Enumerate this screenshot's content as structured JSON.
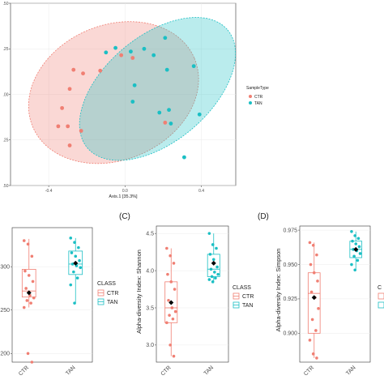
{
  "chart_data": [
    {
      "type": "scatter",
      "panel_label": "",
      "xlabel": "Axis.1  [35.3%]",
      "ylabel": "",
      "xlim": [
        -0.6,
        0.58
      ],
      "ylim": [
        -0.5,
        0.5
      ],
      "xticks": [
        "-0.4",
        "0.0",
        "0.4"
      ],
      "xtick_values": [
        -0.4,
        0.0,
        0.4
      ],
      "yticks": [
        ".50",
        ".25",
        ".00",
        ".25",
        ".50"
      ],
      "ytick_values": [
        0.5,
        0.25,
        0.0,
        -0.25,
        -0.5
      ],
      "grid": true,
      "legend": {
        "title": "SampleType",
        "position": "right",
        "entries": [
          "CTR",
          "TAN"
        ]
      },
      "series": [
        {
          "name": "CTR",
          "color": "#f07f73",
          "points": [
            [
              -0.27,
              0.135
            ],
            [
              -0.22,
              0.115
            ],
            [
              -0.13,
              0.13
            ],
            [
              -0.02,
              0.215
            ],
            [
              -0.29,
              0.03
            ],
            [
              -0.33,
              -0.075
            ],
            [
              -0.35,
              -0.175
            ],
            [
              -0.3,
              -0.175
            ],
            [
              -0.23,
              -0.2
            ],
            [
              -0.29,
              -0.28
            ],
            [
              0.04,
              0.2
            ],
            [
              0.21,
              -0.155
            ]
          ]
        },
        {
          "name": "TAN",
          "color": "#1bbfc4",
          "points": [
            [
              -0.1,
              0.23
            ],
            [
              -0.05,
              0.255
            ],
            [
              0.03,
              0.235
            ],
            [
              0.1,
              0.25
            ],
            [
              0.15,
              0.215
            ],
            [
              0.21,
              0.31
            ],
            [
              0.22,
              0.135
            ],
            [
              0.36,
              0.155
            ],
            [
              0.05,
              0.05
            ],
            [
              0.04,
              -0.04
            ],
            [
              0.23,
              -0.085
            ],
            [
              0.18,
              -0.1
            ],
            [
              0.24,
              -0.16
            ],
            [
              0.39,
              -0.11
            ],
            [
              0.31,
              -0.345
            ]
          ]
        }
      ],
      "ellipses": [
        {
          "group": "CTR",
          "cx": -0.06,
          "cy": 0.01,
          "rx": 0.46,
          "ry": 0.37,
          "angle_deg": 23
        },
        {
          "group": "TAN",
          "cx": 0.17,
          "cy": 0.03,
          "rx": 0.48,
          "ry": 0.29,
          "angle_deg": 40
        }
      ]
    },
    {
      "type": "box",
      "panel_label": "",
      "xlabel": "",
      "ylabel": "",
      "categories": [
        "CTR",
        "TAN"
      ],
      "ylim": [
        190,
        345
      ],
      "yticks": [
        "200",
        "250",
        "300"
      ],
      "ytick_values": [
        200,
        250,
        300
      ],
      "legend": {
        "title": "CLASS",
        "entries": [
          "CTR",
          "TAN"
        ]
      },
      "boxes": [
        {
          "name": "CTR",
          "color": "#f07f73",
          "q1": 265,
          "median": 272,
          "q3": 297,
          "whisker_low": 253,
          "whisker_high": 332,
          "mean": 270,
          "points": [
            330,
            326,
            312,
            295,
            290,
            283,
            275,
            267,
            264,
            261,
            258,
            253,
            200,
            190
          ]
        },
        {
          "name": "TAN",
          "color": "#1bbfc4",
          "q1": 291,
          "median": 303,
          "q3": 318,
          "whisker_low": 258,
          "whisker_high": 333,
          "mean": 304,
          "points": [
            333,
            328,
            322,
            316,
            312,
            307,
            303,
            301,
            299,
            294,
            287,
            279,
            258
          ]
        }
      ]
    },
    {
      "type": "box",
      "panel_label": "(C)",
      "xlabel": "",
      "ylabel": "Alpha-diversity Index: Shannon",
      "categories": [
        "CTR",
        "TAN"
      ],
      "ylim": [
        2.77,
        4.6
      ],
      "yticks": [
        "3.0",
        "3.5",
        "4.0",
        "4.5"
      ],
      "ytick_values": [
        3.0,
        3.5,
        4.0,
        4.5
      ],
      "legend": {
        "title": "CLASS",
        "entries": [
          "CTR",
          "TAN"
        ]
      },
      "boxes": [
        {
          "name": "CTR",
          "color": "#f07f73",
          "q1": 3.3,
          "median": 3.5,
          "q3": 3.85,
          "whisker_low": 2.85,
          "whisker_high": 4.3,
          "mean": 3.57,
          "points": [
            4.3,
            4.2,
            4.1,
            3.95,
            3.85,
            3.75,
            3.6,
            3.5,
            3.45,
            3.4,
            3.35,
            3.3,
            3.0,
            2.85
          ]
        },
        {
          "name": "TAN",
          "color": "#1bbfc4",
          "q1": 3.92,
          "median": 4.02,
          "q3": 4.22,
          "whisker_low": 3.85,
          "whisker_high": 4.5,
          "mean": 4.1,
          "points": [
            4.5,
            4.35,
            4.3,
            4.22,
            4.15,
            4.05,
            4.02,
            3.98,
            3.95,
            3.92,
            3.9,
            3.88,
            3.85
          ]
        }
      ]
    },
    {
      "type": "box",
      "panel_label": "(D)",
      "xlabel": "",
      "ylabel": "Alpha-diversity Index: Simpson",
      "categories": [
        "CTR",
        "TAN"
      ],
      "ylim": [
        0.879,
        0.978
      ],
      "yticks": [
        "0.900",
        "0.925",
        "0.950",
        "0.975"
      ],
      "ytick_values": [
        0.9,
        0.925,
        0.95,
        0.975
      ],
      "legend": {
        "title": "C",
        "entries": [
          "",
          ""
        ]
      },
      "boxes": [
        {
          "name": "CTR",
          "color": "#f07f73",
          "q1": 0.9,
          "median": 0.929,
          "q3": 0.944,
          "whisker_low": 0.882,
          "whisker_high": 0.966,
          "mean": 0.926,
          "points": [
            0.966,
            0.964,
            0.957,
            0.95,
            0.944,
            0.938,
            0.93,
            0.926,
            0.918,
            0.91,
            0.902,
            0.895,
            0.885,
            0.882
          ]
        },
        {
          "name": "TAN",
          "color": "#1bbfc4",
          "q1": 0.955,
          "median": 0.961,
          "q3": 0.967,
          "whisker_low": 0.946,
          "whisker_high": 0.974,
          "mean": 0.961,
          "points": [
            0.974,
            0.971,
            0.969,
            0.967,
            0.965,
            0.963,
            0.961,
            0.96,
            0.958,
            0.956,
            0.953,
            0.95,
            0.946
          ]
        }
      ]
    }
  ]
}
